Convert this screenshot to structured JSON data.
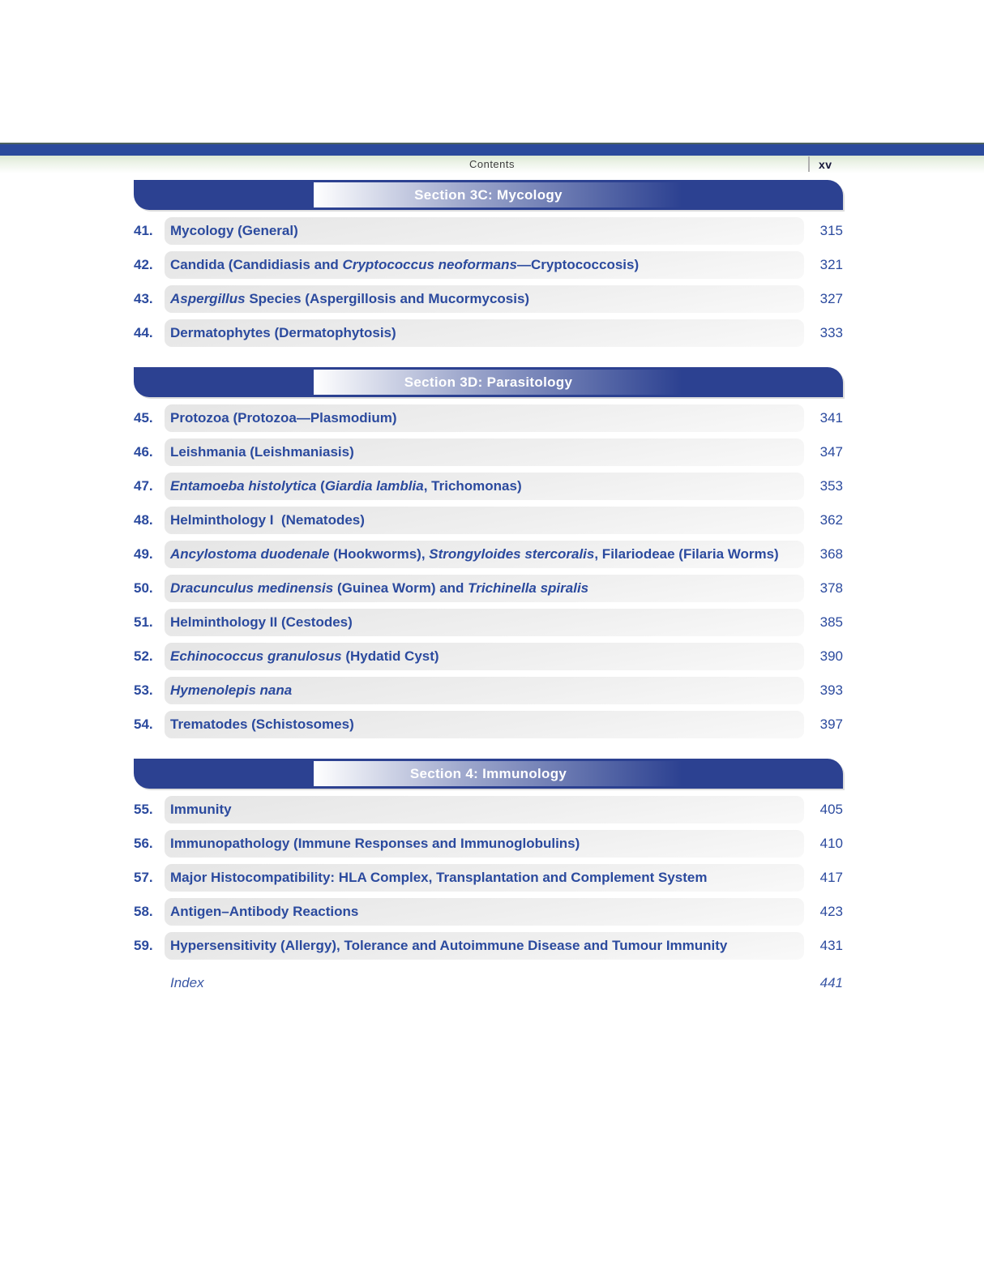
{
  "header": {
    "running_head": "Contents",
    "folio": "xv"
  },
  "colors": {
    "bar_blue": "#2c4191",
    "top_bar_blue": "#2b4a9c",
    "entry_text_blue": "#2b4a9e",
    "green_strip": "#dce8d4",
    "pill_gray": "#e5e5e5"
  },
  "sections": [
    {
      "title": "Section 3C: Mycology",
      "entries": [
        {
          "number": "41.",
          "segments": [
            {
              "text": "Mycology (General)",
              "italic": false
            }
          ],
          "page": "315"
        },
        {
          "number": "42.",
          "segments": [
            {
              "text": "Candida (Candidiasis and ",
              "italic": false
            },
            {
              "text": "Cryptococcus neoformans",
              "italic": true
            },
            {
              "text": "—Cryptococcosis)",
              "italic": false
            }
          ],
          "page": "321"
        },
        {
          "number": "43.",
          "segments": [
            {
              "text": "Aspergillus",
              "italic": true
            },
            {
              "text": " Species (Aspergillosis and Mucormycosis)",
              "italic": false
            }
          ],
          "page": "327"
        },
        {
          "number": "44.",
          "segments": [
            {
              "text": "Dermatophytes (Dermatophytosis)",
              "italic": false
            }
          ],
          "page": "333"
        }
      ]
    },
    {
      "title": "Section 3D: Parasitology",
      "entries": [
        {
          "number": "45.",
          "segments": [
            {
              "text": "Protozoa (Protozoa—Plasmodium)",
              "italic": false
            }
          ],
          "page": "341"
        },
        {
          "number": "46.",
          "segments": [
            {
              "text": "Leishmania (Leishmaniasis)",
              "italic": false
            }
          ],
          "page": "347"
        },
        {
          "number": "47.",
          "segments": [
            {
              "text": "Entamoeba histolytica",
              "italic": true
            },
            {
              "text": " (",
              "italic": false
            },
            {
              "text": "Giardia lamblia",
              "italic": true
            },
            {
              "text": ", Trichomonas)",
              "italic": false
            }
          ],
          "page": "353"
        },
        {
          "number": "48.",
          "segments": [
            {
              "text": "Helminthology I  (Nematodes)",
              "italic": false
            }
          ],
          "page": "362"
        },
        {
          "number": "49.",
          "segments": [
            {
              "text": "Ancylostoma duodenale",
              "italic": true
            },
            {
              "text": " (Hookworms), ",
              "italic": false
            },
            {
              "text": "Strongyloides stercoralis",
              "italic": true
            },
            {
              "text": ", Filariodeae (Filaria Worms)",
              "italic": false
            }
          ],
          "page": "368"
        },
        {
          "number": "50.",
          "segments": [
            {
              "text": "Dracunculus medinensis",
              "italic": true
            },
            {
              "text": " (Guinea Worm) and ",
              "italic": false
            },
            {
              "text": "Trichinella spiralis",
              "italic": true
            }
          ],
          "page": "378"
        },
        {
          "number": "51.",
          "segments": [
            {
              "text": "Helminthology II (Cestodes)",
              "italic": false
            }
          ],
          "page": "385"
        },
        {
          "number": "52.",
          "segments": [
            {
              "text": "Echinococcus granulosus",
              "italic": true
            },
            {
              "text": " (Hydatid Cyst)",
              "italic": false
            }
          ],
          "page": "390"
        },
        {
          "number": "53.",
          "segments": [
            {
              "text": "Hymenolepis nana",
              "italic": true
            }
          ],
          "page": "393"
        },
        {
          "number": "54.",
          "segments": [
            {
              "text": "Trematodes (Schistosomes)",
              "italic": false
            }
          ],
          "page": "397"
        }
      ]
    },
    {
      "title": "Section 4: Immunology",
      "entries": [
        {
          "number": "55.",
          "segments": [
            {
              "text": "Immunity",
              "italic": false
            }
          ],
          "page": "405"
        },
        {
          "number": "56.",
          "segments": [
            {
              "text": "Immunopathology (Immune Responses and Immunoglobulins)",
              "italic": false
            }
          ],
          "page": "410"
        },
        {
          "number": "57.",
          "segments": [
            {
              "text": "Major Histocompatibility: HLA Complex, Transplantation and Complement System",
              "italic": false
            }
          ],
          "page": "417"
        },
        {
          "number": "58.",
          "segments": [
            {
              "text": "Antigen–Antibody Reactions",
              "italic": false
            }
          ],
          "page": "423"
        },
        {
          "number": "59.",
          "segments": [
            {
              "text": "Hypersensitivity (Allergy), Tolerance and Autoimmune Disease and Tumour Immunity",
              "italic": false
            }
          ],
          "page": "431"
        }
      ]
    }
  ],
  "index_row": {
    "label": "Index",
    "page": "441"
  }
}
